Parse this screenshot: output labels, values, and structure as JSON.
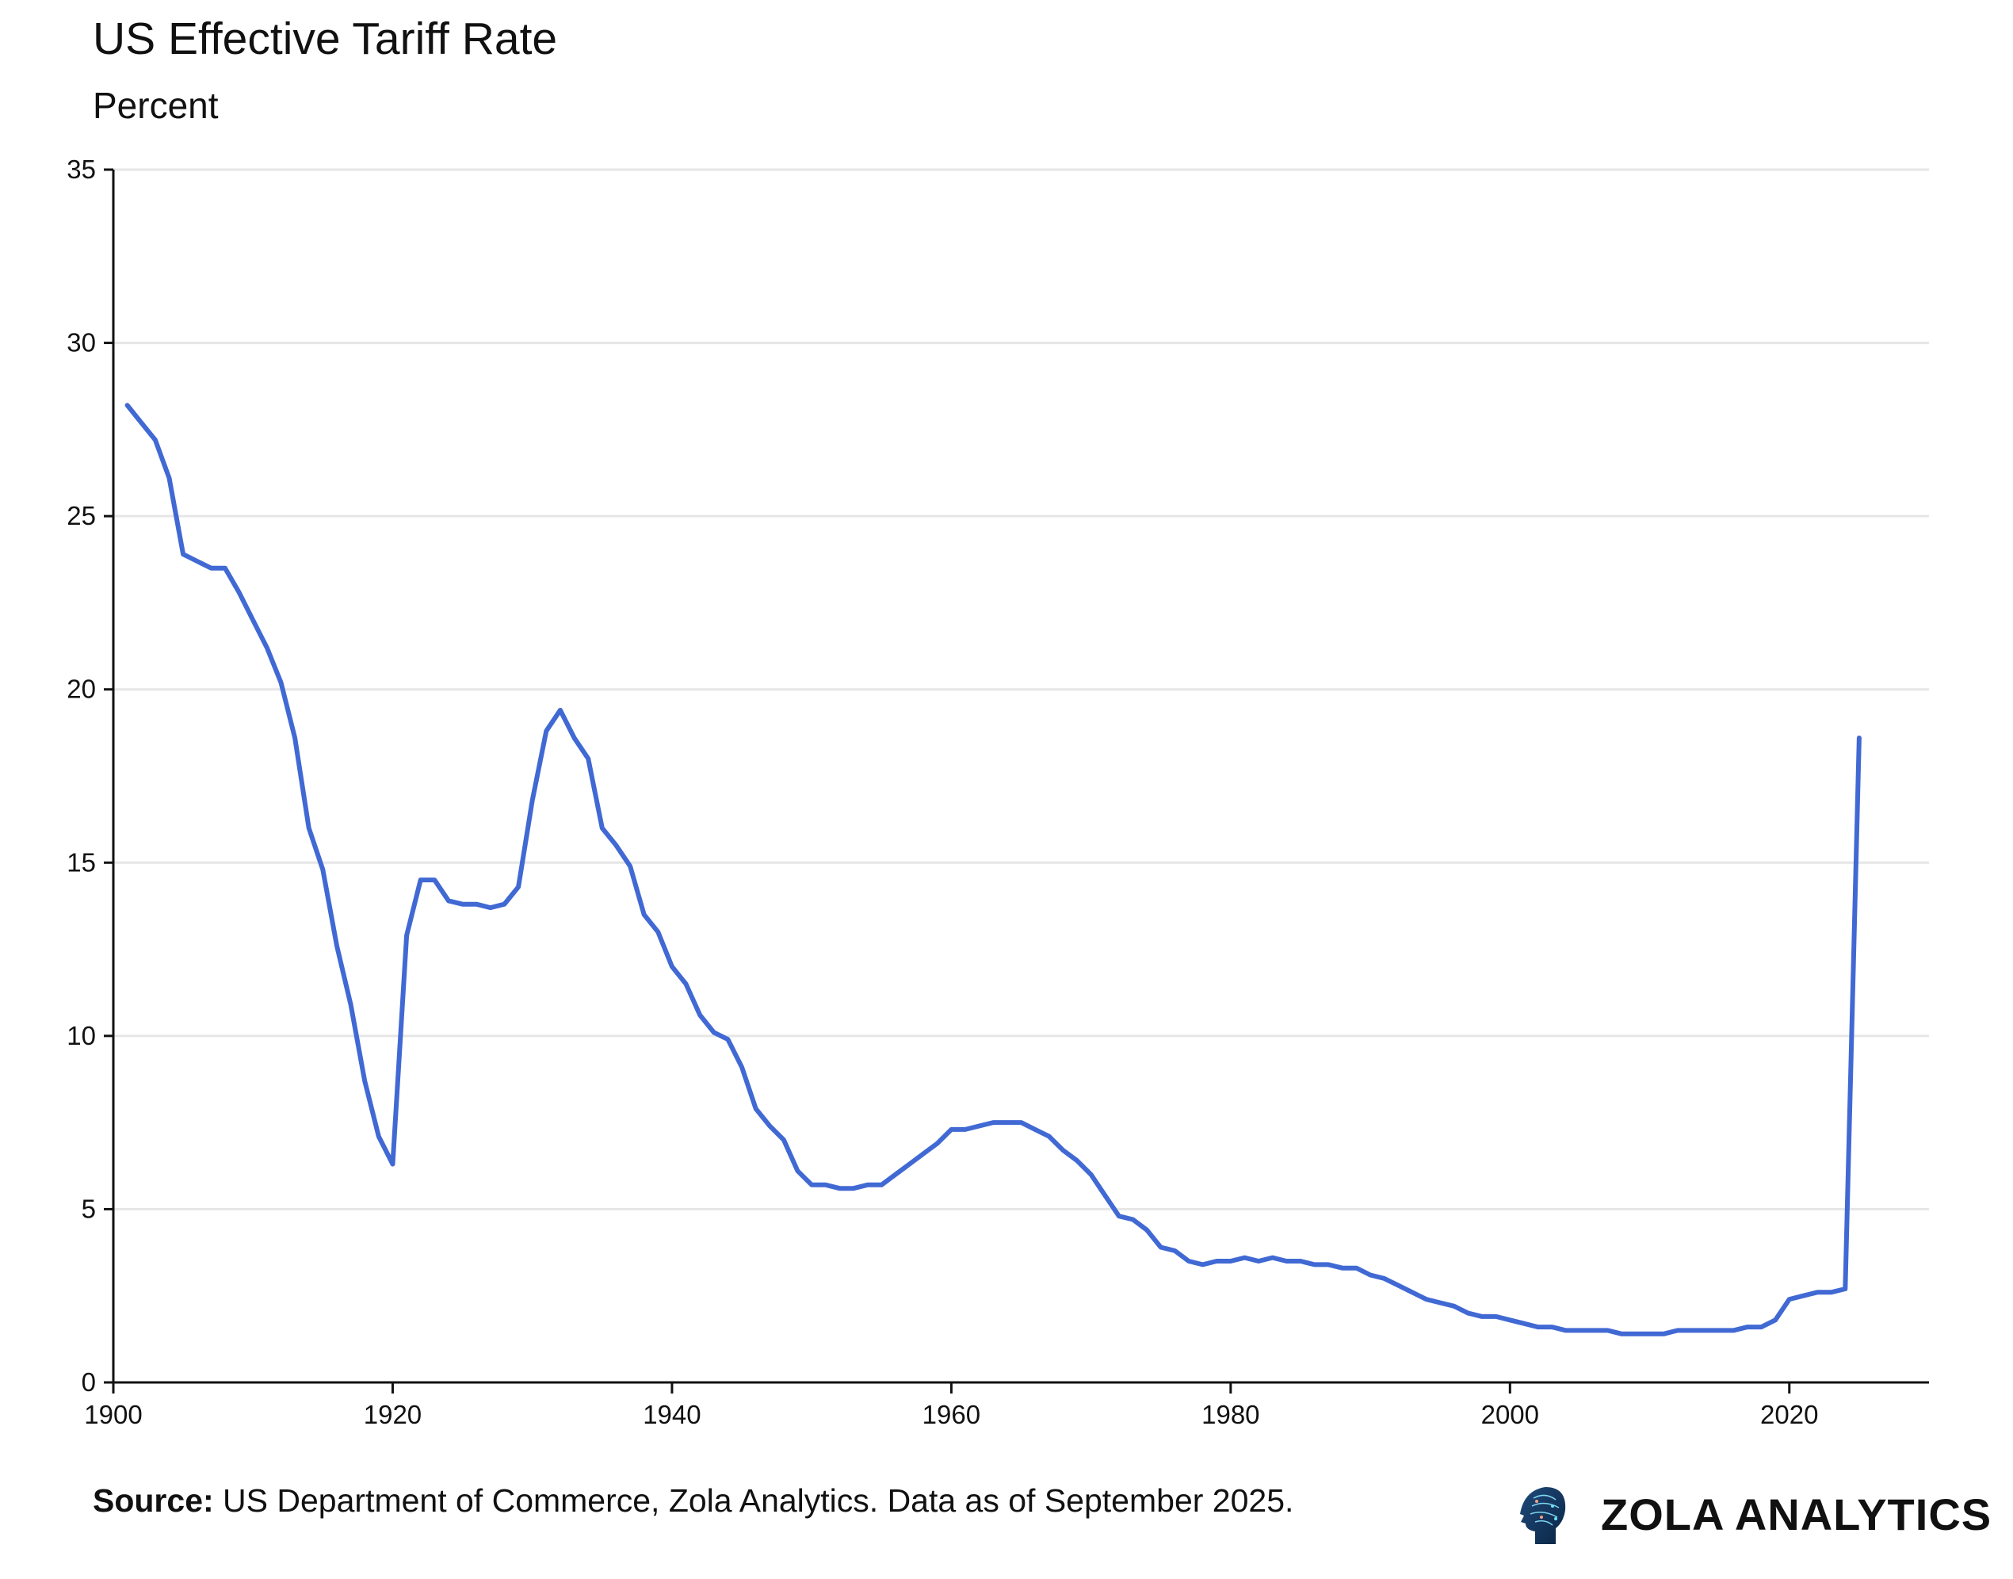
{
  "chart_data": {
    "type": "line",
    "title": "US Effective Tariff Rate",
    "subtitle": "Percent",
    "xlabel": "",
    "ylabel": "",
    "xlim": [
      1900,
      2030
    ],
    "ylim": [
      0,
      35
    ],
    "x_ticks": [
      "1900",
      "1920",
      "1940",
      "1960",
      "1980",
      "2000",
      "2020"
    ],
    "y_ticks": [
      "0",
      "5",
      "10",
      "15",
      "20",
      "25",
      "30",
      "35"
    ],
    "grid": "horizontal",
    "line_color": "#4169d4",
    "x": [
      1901,
      1902,
      1903,
      1904,
      1905,
      1906,
      1907,
      1908,
      1909,
      1910,
      1911,
      1912,
      1913,
      1914,
      1915,
      1916,
      1917,
      1918,
      1919,
      1920,
      1921,
      1922,
      1923,
      1924,
      1925,
      1926,
      1927,
      1928,
      1929,
      1930,
      1931,
      1932,
      1933,
      1934,
      1935,
      1936,
      1937,
      1938,
      1939,
      1940,
      1941,
      1942,
      1943,
      1944,
      1945,
      1946,
      1947,
      1948,
      1949,
      1950,
      1951,
      1952,
      1953,
      1954,
      1955,
      1956,
      1957,
      1958,
      1959,
      1960,
      1961,
      1962,
      1963,
      1964,
      1965,
      1966,
      1967,
      1968,
      1969,
      1970,
      1971,
      1972,
      1973,
      1974,
      1975,
      1976,
      1977,
      1978,
      1979,
      1980,
      1981,
      1982,
      1983,
      1984,
      1985,
      1986,
      1987,
      1988,
      1989,
      1990,
      1991,
      1992,
      1993,
      1994,
      1995,
      1996,
      1997,
      1998,
      1999,
      2000,
      2001,
      2002,
      2003,
      2004,
      2005,
      2006,
      2007,
      2008,
      2009,
      2010,
      2011,
      2012,
      2013,
      2014,
      2015,
      2016,
      2017,
      2018,
      2019,
      2020,
      2021,
      2022,
      2023,
      2024,
      2025
    ],
    "values": [
      28.2,
      27.7,
      27.2,
      26.1,
      23.9,
      23.7,
      23.5,
      23.5,
      22.8,
      22.0,
      21.2,
      20.2,
      18.6,
      16.0,
      14.8,
      12.6,
      10.9,
      8.7,
      7.1,
      6.3,
      12.9,
      14.5,
      14.5,
      13.9,
      13.8,
      13.8,
      13.7,
      13.8,
      14.3,
      16.8,
      18.8,
      19.4,
      18.6,
      18.0,
      16.0,
      15.5,
      14.9,
      13.5,
      13.0,
      12.0,
      11.5,
      10.6,
      10.1,
      9.9,
      9.1,
      7.9,
      7.4,
      7.0,
      6.1,
      5.7,
      5.7,
      5.6,
      5.6,
      5.7,
      5.7,
      6.0,
      6.3,
      6.6,
      6.9,
      7.3,
      7.3,
      7.4,
      7.5,
      7.5,
      7.5,
      7.3,
      7.1,
      6.7,
      6.4,
      6.0,
      5.4,
      4.8,
      4.7,
      4.4,
      3.9,
      3.8,
      3.5,
      3.4,
      3.5,
      3.5,
      3.6,
      3.5,
      3.6,
      3.5,
      3.5,
      3.4,
      3.4,
      3.3,
      3.3,
      3.1,
      3.0,
      2.8,
      2.6,
      2.4,
      2.3,
      2.2,
      2.0,
      1.9,
      1.9,
      1.8,
      1.7,
      1.6,
      1.6,
      1.5,
      1.5,
      1.5,
      1.5,
      1.4,
      1.4,
      1.4,
      1.4,
      1.5,
      1.5,
      1.5,
      1.5,
      1.5,
      1.6,
      1.6,
      1.8,
      2.4,
      2.5,
      2.6,
      2.6,
      2.7,
      18.6
    ]
  },
  "footer": {
    "source_label": "Source:",
    "source_text": " US Department of Commerce, Zola Analytics. Data as of September 2025.",
    "logo_text": "ZOLA ANALYTICS"
  }
}
